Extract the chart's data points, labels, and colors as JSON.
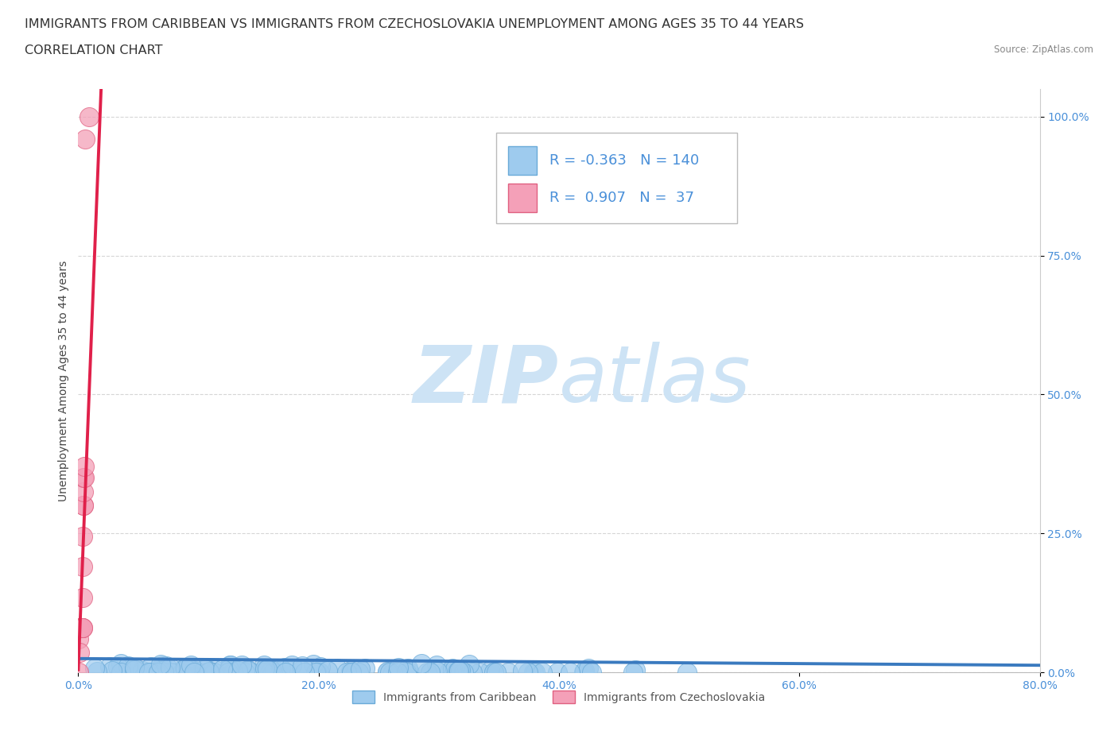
{
  "title_line1": "IMMIGRANTS FROM CARIBBEAN VS IMMIGRANTS FROM CZECHOSLOVAKIA UNEMPLOYMENT AMONG AGES 35 TO 44 YEARS",
  "title_line2": "CORRELATION CHART",
  "source": "Source: ZipAtlas.com",
  "ylabel": "Unemployment Among Ages 35 to 44 years",
  "xlim": [
    0.0,
    0.8
  ],
  "ylim": [
    0.0,
    1.05
  ],
  "caribbean_color": "#9ecbee",
  "caribbean_edge": "#6aaad8",
  "czechoslovakia_color": "#f4a0b8",
  "czechoslovakia_edge": "#e06080",
  "trend_caribbean_color": "#3a7abf",
  "trend_czechoslovakia_color": "#e0204a",
  "legend_r_caribbean": "-0.363",
  "legend_n_caribbean": "140",
  "legend_r_czechoslovakia": "0.907",
  "legend_n_czechoslovakia": "37",
  "watermark_zip": "ZIP",
  "watermark_atlas": "atlas",
  "watermark_color": "#cde3f5",
  "grid_color": "#cccccc",
  "background_color": "#ffffff",
  "title_fontsize": 11.5,
  "subtitle_fontsize": 11.5,
  "axis_label_fontsize": 10,
  "tick_fontsize": 10,
  "legend_fontsize": 13,
  "caribbean_R": -0.363,
  "caribbean_N": 140,
  "czechoslovakia_R": 0.907,
  "czechoslovakia_N": 37
}
